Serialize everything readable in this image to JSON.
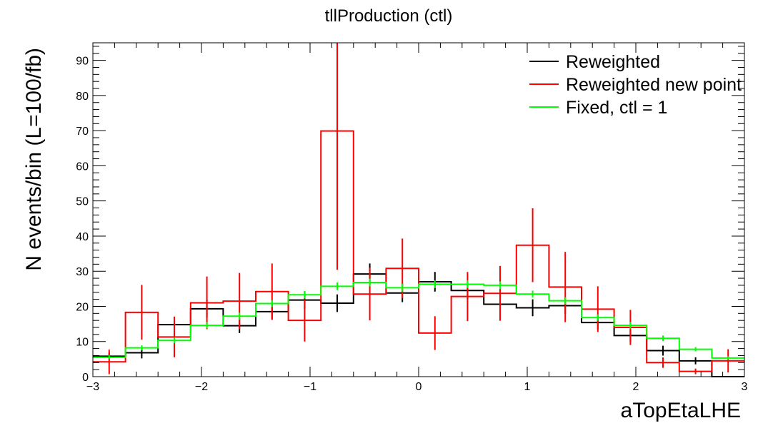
{
  "chart_data": {
    "type": "histogram",
    "title": "tllProduction (ctl)",
    "xlabel": "aTopEtaLHE",
    "ylabel": "N events/bin (L=100/fb)",
    "xlim": [
      -3,
      3
    ],
    "ylim": [
      0,
      95
    ],
    "xticks": [
      -3,
      -2,
      -1,
      0,
      1,
      2,
      3
    ],
    "xtick_labels": [
      "−3",
      "−2",
      "−1",
      "0",
      "1",
      "2",
      "3"
    ],
    "yticks": [
      0,
      10,
      20,
      30,
      40,
      50,
      60,
      70,
      80,
      90
    ],
    "ytick_labels": [
      "0",
      "10",
      "20",
      "30",
      "40",
      "50",
      "60",
      "70",
      "80",
      "90"
    ],
    "bin_edges": [
      -3.0,
      -2.7,
      -2.4,
      -2.1,
      -1.8,
      -1.5,
      -1.2,
      -0.9,
      -0.6,
      -0.3,
      0.0,
      0.3,
      0.6,
      0.9,
      1.2,
      1.5,
      1.8,
      2.1,
      2.4,
      2.7,
      3.0
    ],
    "legend_position": "top-right",
    "series": [
      {
        "name": "Reweighted",
        "color": "#000000",
        "values": [
          5.8,
          6.8,
          14.8,
          19.3,
          14.5,
          18.5,
          21.8,
          20.9,
          29.2,
          23.8,
          27.0,
          24.5,
          20.6,
          19.6,
          20.2,
          15.4,
          11.7,
          7.4,
          4.5,
          0
        ],
        "errors": [
          1.0,
          1.6,
          2.2,
          2.5,
          2.1,
          2.3,
          2.5,
          2.5,
          3.0,
          2.6,
          2.8,
          2.6,
          2.4,
          2.4,
          2.4,
          2.0,
          1.8,
          1.4,
          1.0,
          0
        ]
      },
      {
        "name": "Reweighted new point",
        "color": "#ff0000",
        "values": [
          4.2,
          18.3,
          11.3,
          21.0,
          21.5,
          24.2,
          16.0,
          69.9,
          23.5,
          30.8,
          12.4,
          22.8,
          23.7,
          37.4,
          25.5,
          19.2,
          14.0,
          4.0,
          1.5,
          4.5
        ],
        "errors": [
          3.5,
          7.8,
          5.8,
          7.5,
          8.0,
          8.0,
          6.0,
          39.5,
          7.5,
          8.5,
          4.8,
          7.0,
          7.8,
          10.5,
          10.0,
          6.5,
          5.0,
          1.5,
          0.8,
          3.3
        ]
      },
      {
        "name": "Fixed, ctl = 1",
        "color": "#00ff00",
        "values": [
          5.5,
          8.2,
          10.3,
          14.6,
          17.2,
          20.8,
          23.3,
          25.7,
          26.8,
          25.3,
          26.3,
          26.3,
          26.0,
          23.5,
          21.6,
          16.8,
          14.6,
          10.9,
          7.8,
          5.3
        ],
        "errors": [
          0.6,
          0.7,
          0.8,
          0.9,
          1.0,
          1.0,
          1.1,
          1.1,
          1.1,
          1.1,
          1.1,
          1.1,
          1.1,
          1.0,
          1.0,
          0.9,
          0.9,
          0.8,
          0.6,
          0.5
        ]
      }
    ]
  }
}
